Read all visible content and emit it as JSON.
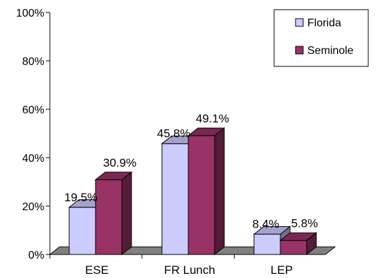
{
  "chart_data": {
    "type": "bar",
    "categories": [
      "ESE",
      "FR Lunch",
      "LEP"
    ],
    "series": [
      {
        "name": "Florida",
        "values": [
          19.5,
          45.8,
          8.4
        ],
        "labels": [
          "19.5%",
          "45.8%",
          "8.4%"
        ],
        "color": "#CCCCFF"
      },
      {
        "name": "Seminole",
        "values": [
          30.9,
          49.1,
          5.8
        ],
        "labels": [
          "30.9%",
          "49.1%",
          "5.8%"
        ],
        "color": "#993366"
      }
    ],
    "ylim": [
      0,
      100
    ],
    "yticks": [
      "0%",
      "20%",
      "40%",
      "60%",
      "80%",
      "100%"
    ],
    "legend_position": "top-right",
    "floor_color": "#808080"
  }
}
